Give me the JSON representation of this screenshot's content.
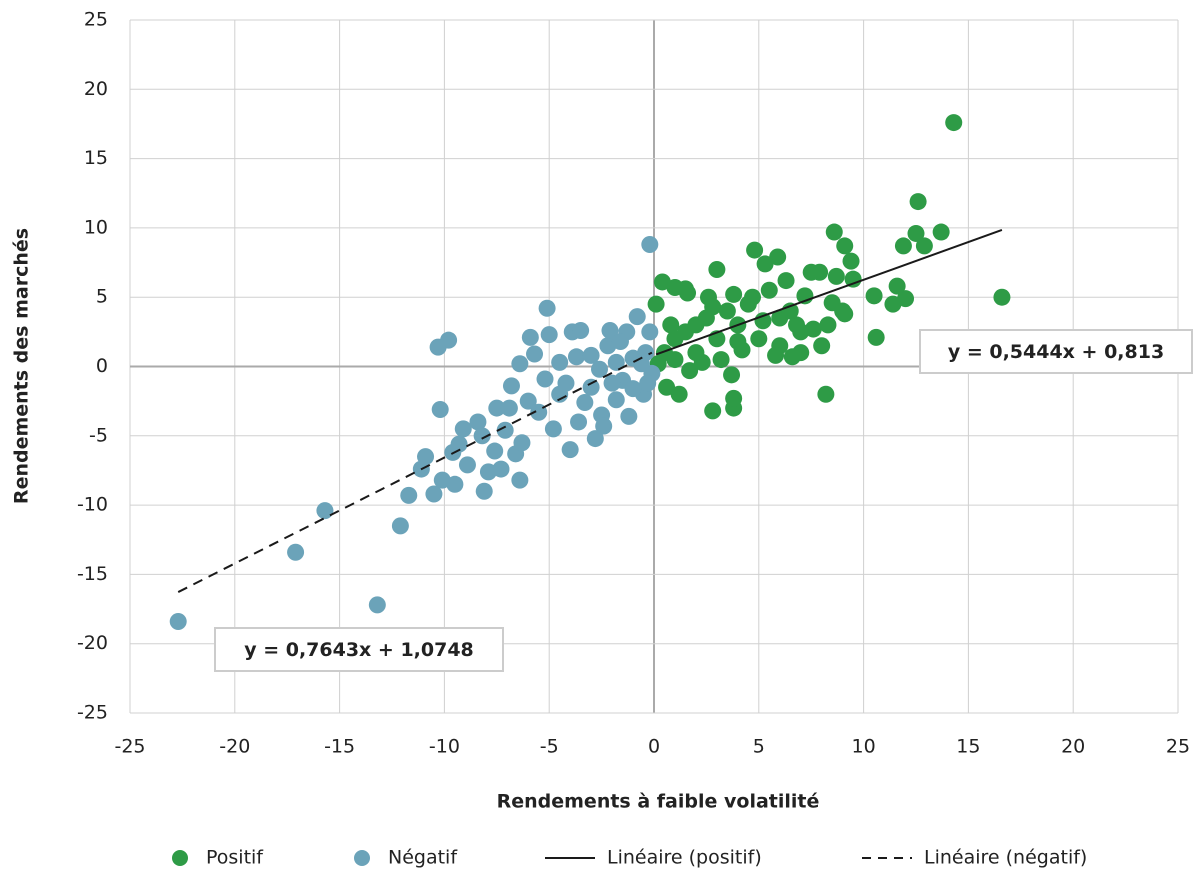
{
  "chart_data": {
    "type": "scatter",
    "x_label": "Rendements à faible volatilité",
    "y_label": "Rendements des marchés",
    "xlim": [
      -25,
      25
    ],
    "xticks": [
      -25,
      -20,
      -15,
      -10,
      -5,
      0,
      5,
      10,
      15,
      20,
      25
    ],
    "ylim": [
      -25,
      25
    ],
    "yticks": [
      -25,
      -20,
      -15,
      -10,
      -5,
      0,
      5,
      10,
      15,
      20,
      25
    ],
    "grid": true,
    "series": [
      {
        "name": "Positif",
        "color": "#2e9b46",
        "x": [
          14.3,
          12.6,
          13.7,
          12.5,
          12.9,
          11.9,
          8.6,
          9.1,
          9.4,
          9.5,
          16.6,
          12.0,
          11.6,
          11.4,
          10.5,
          10.6,
          8.2,
          2.8,
          3.8,
          3.8,
          1.2,
          4.8,
          5.9,
          5.3,
          3.0,
          7.5,
          7.9,
          8.7,
          0.4,
          1.0,
          1.5,
          1.6,
          2.6,
          0.1,
          6.0,
          6.8,
          7.6,
          8.3,
          8.0,
          9.0,
          9.1,
          3.7,
          2.3,
          1.7,
          0.6,
          0.2,
          0.5,
          1.0,
          1.5,
          2.0,
          2.5,
          3.0,
          3.5,
          4.0,
          4.5,
          5.0,
          5.5,
          6.0,
          6.5,
          7.0,
          7.2,
          4.2,
          5.8,
          3.2,
          2.0,
          1.0,
          0.8,
          4.7,
          5.2,
          6.3,
          2.8,
          3.8,
          6.6,
          8.5,
          7.0,
          4.0
        ],
        "values": [
          17.6,
          11.9,
          9.7,
          9.6,
          8.7,
          8.7,
          9.7,
          8.7,
          7.6,
          6.3,
          5.0,
          4.9,
          5.8,
          4.5,
          5.1,
          2.1,
          -2.0,
          -3.2,
          -3.0,
          -2.3,
          -2.0,
          8.4,
          7.9,
          7.4,
          7.0,
          6.8,
          6.8,
          6.5,
          6.1,
          5.7,
          5.6,
          5.3,
          5.0,
          4.5,
          3.5,
          3.0,
          2.7,
          3.0,
          1.5,
          4.0,
          3.8,
          -0.6,
          0.3,
          -0.3,
          -1.5,
          0.2,
          1.0,
          2.0,
          2.5,
          3.0,
          3.5,
          2.0,
          4.0,
          3.0,
          4.5,
          2.0,
          5.5,
          1.5,
          4.0,
          2.5,
          5.1,
          1.2,
          0.8,
          0.5,
          1.0,
          0.5,
          3.0,
          5.0,
          3.3,
          6.2,
          4.3,
          5.2,
          0.7,
          4.6,
          1.0,
          1.8
        ]
      },
      {
        "name": "Négatif",
        "color": "#6ba3b9",
        "x": [
          -0.2,
          -9.8,
          -10.3,
          -5.1,
          -10.2,
          -22.7,
          -17.1,
          -15.7,
          -13.2,
          -12.1,
          -11.7,
          -10.9,
          -11.1,
          -10.5,
          -10.1,
          -9.5,
          -9.6,
          -9.3,
          -9.1,
          -8.9,
          -8.4,
          -8.1,
          -7.9,
          -7.6,
          -7.3,
          -7.1,
          -6.8,
          -6.6,
          -6.4,
          -6.3,
          -6.0,
          -5.7,
          -5.9,
          -5.0,
          -6.4,
          -5.5,
          -5.2,
          -4.8,
          -4.5,
          -4.0,
          -3.9,
          -3.5,
          -3.7,
          -3.0,
          -2.8,
          -2.5,
          -2.2,
          -2.1,
          -1.8,
          -1.5,
          -1.3,
          -1.2,
          -1.0,
          -0.8,
          -0.5,
          -0.4,
          -0.2,
          -0.1,
          -1.8,
          -2.6,
          -3.3,
          -4.2,
          -3.0,
          -2.0,
          -1.0,
          -0.6,
          -4.5,
          -3.6,
          -2.4,
          -1.6,
          -0.3,
          -7.5,
          -8.2,
          -6.9
        ],
        "values": [
          8.8,
          1.9,
          1.4,
          4.2,
          -3.1,
          -18.4,
          -13.4,
          -10.4,
          -17.2,
          -11.5,
          -9.3,
          -6.5,
          -7.4,
          -9.2,
          -8.2,
          -8.5,
          -6.2,
          -5.6,
          -4.5,
          -7.1,
          -4.0,
          -9.0,
          -7.6,
          -6.1,
          -7.4,
          -4.6,
          -1.4,
          -6.3,
          -8.2,
          -5.5,
          -2.5,
          0.9,
          2.1,
          2.3,
          0.2,
          -3.3,
          -0.9,
          -4.5,
          -2.0,
          -6.0,
          2.5,
          2.6,
          0.7,
          -1.5,
          -5.2,
          -3.5,
          1.5,
          2.6,
          -2.4,
          -1.0,
          2.5,
          -3.6,
          0.6,
          3.6,
          -2.0,
          1.0,
          2.5,
          -0.5,
          0.3,
          -0.2,
          -2.6,
          -1.2,
          0.8,
          -1.2,
          -1.6,
          0.2,
          0.3,
          -4.0,
          -4.3,
          1.8,
          -1.2,
          -3.0,
          -5.0,
          -3.0
        ]
      }
    ],
    "trendlines": [
      {
        "name": "Linéaire (positif)",
        "series": 0,
        "slope": 0.5444,
        "intercept": 0.813,
        "label": "y = 0,5444x + 0,813",
        "dashed": false,
        "color": "#1a1a1a"
      },
      {
        "name": "Linéaire (négatif)",
        "series": 1,
        "slope": 0.7643,
        "intercept": 1.0748,
        "label": "y = 0,7643x + 1,0748",
        "dashed": true,
        "color": "#1a1a1a"
      }
    ]
  }
}
